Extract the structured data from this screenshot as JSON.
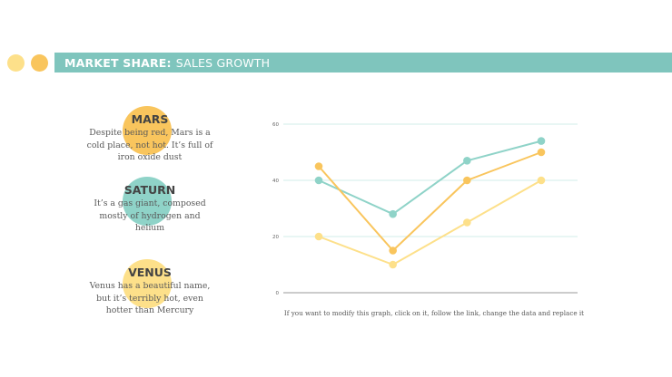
{
  "header": {
    "title_bold": "MARKET SHARE:",
    "title_rest": "SALES GROWTH"
  },
  "colors": {
    "teal": "#7fc8bf",
    "orange": "#f9c55d",
    "yellow": "#fde08a",
    "banner": "#7fc5bd",
    "grid_teal": "#d2ece8",
    "axis": "#999999"
  },
  "legend": [
    {
      "title": "MARS",
      "desc": "Despite being red, Mars is a cold place, not hot. It’s full of iron oxide dust",
      "color": "#f9c55d"
    },
    {
      "title": "SATURN",
      "desc": "It’s a gas giant, composed mostly of hydrogen and helium",
      "color": "#8fd3c8"
    },
    {
      "title": "VENUS",
      "desc": "Venus has a beautiful name, but it’s terribly hot, even hotter than Mercury",
      "color": "#fde08a"
    }
  ],
  "chart_data": {
    "type": "line",
    "x": [
      1,
      2,
      3,
      4
    ],
    "ylim": [
      0,
      60
    ],
    "yticks": [
      0,
      20,
      40,
      60
    ],
    "grid": true,
    "series": [
      {
        "values": [
          40,
          28,
          47,
          54
        ],
        "color": "#8fd3c8"
      },
      {
        "values": [
          45,
          15,
          40,
          50
        ],
        "color": "#f9c55d"
      },
      {
        "values": [
          20,
          10,
          25,
          40
        ],
        "color": "#fde08a"
      }
    ]
  },
  "footnote": "If you want to modify this graph, click on it, follow the link, change the data and replace it"
}
